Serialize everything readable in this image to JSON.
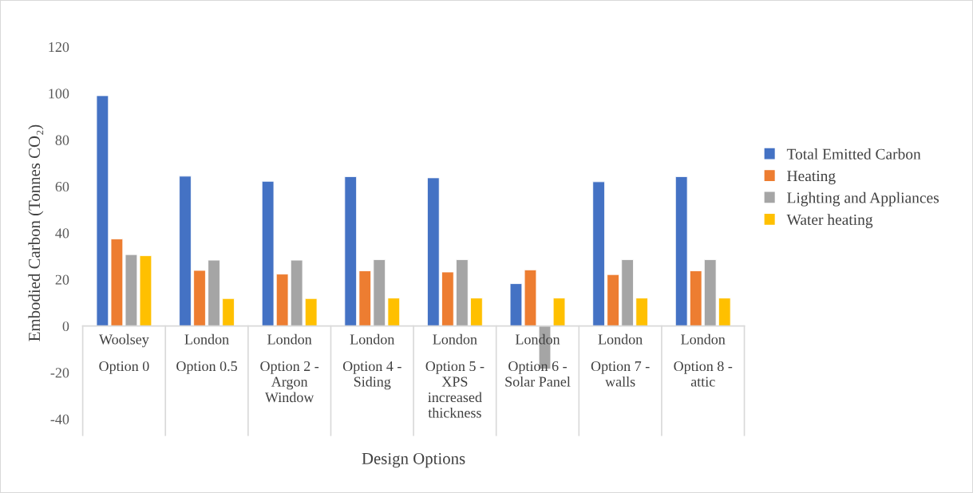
{
  "chart_data": {
    "type": "bar",
    "xlabel": "Design Options",
    "ylabel": "Embodied Carbon (Tonnes CO₂)",
    "categories": [
      "Woolsey\nOption 0",
      "London\nOption 0.5",
      "London\nOption 2 -\nArgon\nWindow",
      "London\nOption 4 -\nSiding",
      "London\nOption 5 -\nXPS\nincreased\nthickness",
      "London\nOption 6 -\nSolar Panel",
      "London\nOption 7 -\nwalls",
      "London\nOption 8 -\nattic"
    ],
    "series": [
      {
        "name": "Total Emitted Carbon",
        "color": "#4472c4",
        "values": [
          99,
          64.4,
          62.2,
          64.2,
          63.7,
          18.2,
          62,
          64.2
        ]
      },
      {
        "name": "Heating",
        "color": "#ed7d31",
        "values": [
          37.4,
          23.9,
          22.3,
          23.7,
          23.2,
          24.1,
          22.1,
          23.7
        ]
      },
      {
        "name": "Lighting and Appliances",
        "color": "#a5a5a5",
        "values": [
          30.7,
          28.3,
          28.3,
          28.5,
          28.5,
          -18.5,
          28.5,
          28.5
        ]
      },
      {
        "name": "Water heating",
        "color": "#ffc000",
        "values": [
          30.2,
          11.8,
          11.8,
          12,
          12,
          12,
          12,
          12
        ]
      }
    ],
    "ylim": [
      -40,
      120
    ],
    "yticks": [
      -40,
      -20,
      0,
      20,
      40,
      60,
      80,
      100,
      120
    ],
    "grid": false,
    "legend": "right"
  }
}
